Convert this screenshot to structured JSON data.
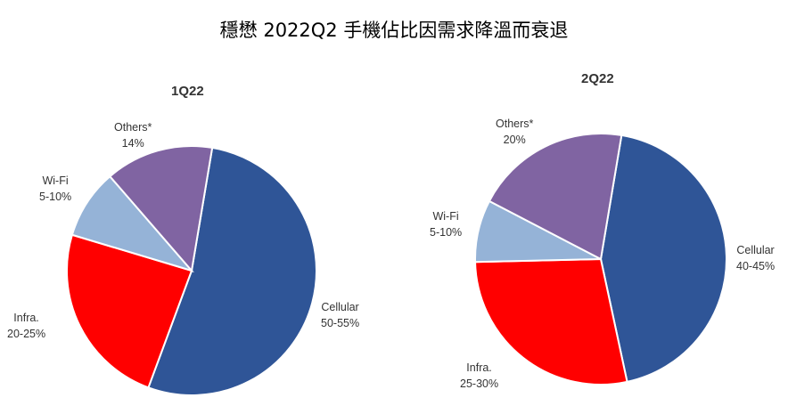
{
  "chart_data": [
    {
      "type": "pie",
      "title": "1Q22",
      "slices": [
        {
          "name": "Cellular",
          "label": "50-55%",
          "value": 53,
          "color": "#2F5597"
        },
        {
          "name": "Infra.",
          "label": "20-25%",
          "value": 24,
          "color": "#FF0000"
        },
        {
          "name": "Wi-Fi",
          "label": "5-10%",
          "value": 9,
          "color": "#95B3D7"
        },
        {
          "name": "Others*",
          "label": "14%",
          "value": 14,
          "color": "#8064A2"
        }
      ]
    },
    {
      "type": "pie",
      "title": "2Q22",
      "slices": [
        {
          "name": "Cellular",
          "label": "40-45%",
          "value": 44,
          "color": "#2F5597"
        },
        {
          "name": "Infra.",
          "label": "25-30%",
          "value": 28,
          "color": "#FF0000"
        },
        {
          "name": "Wi-Fi",
          "label": "5-10%",
          "value": 8,
          "color": "#95B3D7"
        },
        {
          "name": "Others*",
          "label": "20%",
          "value": 20,
          "color": "#8064A2"
        }
      ]
    }
  ],
  "title": "穩懋 2022Q2 手機佔比因需求降溫而衰退"
}
